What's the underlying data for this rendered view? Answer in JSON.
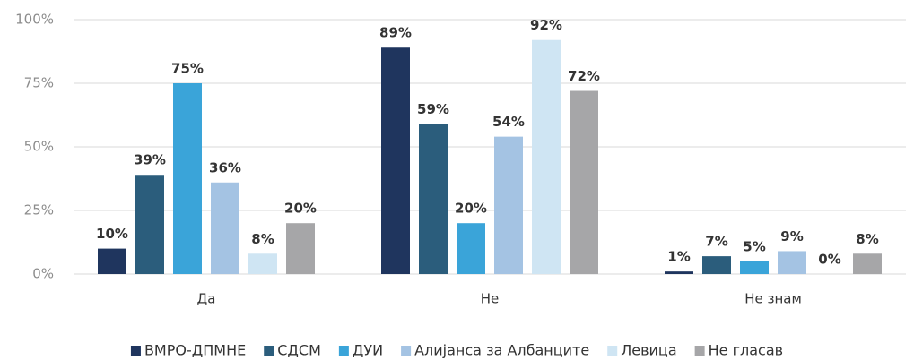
{
  "chart_data": {
    "type": "bar",
    "categories": [
      "Да",
      "Не",
      "Не знам"
    ],
    "series": [
      {
        "name": "ВМРО-ДПМНЕ",
        "color": "#1f355e",
        "values": [
          10,
          89,
          1
        ],
        "value_labels": [
          "10%",
          "89%",
          "1%"
        ]
      },
      {
        "name": "СДСМ",
        "color": "#2b5d7c",
        "values": [
          39,
          59,
          7
        ],
        "value_labels": [
          "39%",
          "59%",
          "7%"
        ]
      },
      {
        "name": "ДУИ",
        "color": "#3aa4d9",
        "values": [
          75,
          20,
          5
        ],
        "value_labels": [
          "75%",
          "20%",
          "5%"
        ]
      },
      {
        "name": "Алијанса за Албанците",
        "color": "#a4c3e3",
        "values": [
          36,
          54,
          9
        ],
        "value_labels": [
          "36%",
          "54%",
          "9%"
        ]
      },
      {
        "name": "Левица",
        "color": "#cfe5f3",
        "values": [
          8,
          92,
          0
        ],
        "value_labels": [
          "8%",
          "92%",
          "0%"
        ]
      },
      {
        "name": "Не гласав",
        "color": "#a6a6a8",
        "values": [
          20,
          72,
          8
        ],
        "value_labels": [
          "20%",
          "72%",
          "8%"
        ]
      }
    ],
    "ylim": [
      0,
      100
    ],
    "yticks": [
      {
        "value": 0,
        "label": "0%"
      },
      {
        "value": 25,
        "label": "25%"
      },
      {
        "value": 50,
        "label": "50%"
      },
      {
        "value": 75,
        "label": "75%"
      },
      {
        "value": 100,
        "label": "100%"
      }
    ],
    "grid": true,
    "legend": "bottom"
  }
}
